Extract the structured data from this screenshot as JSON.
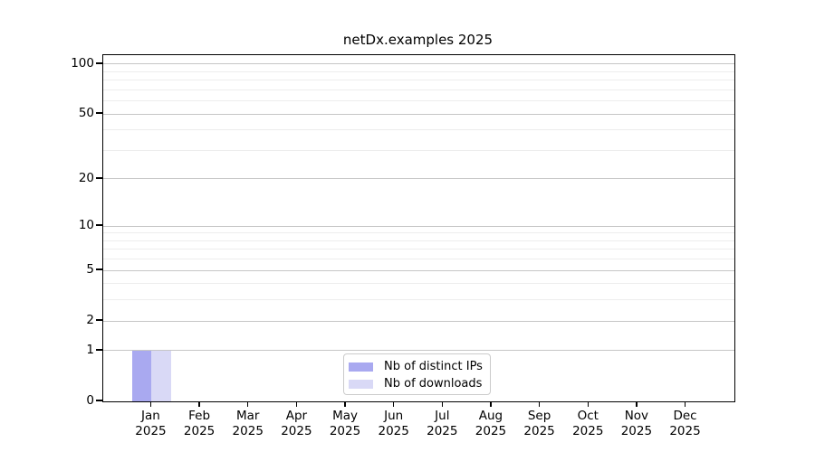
{
  "chart_data": {
    "type": "bar",
    "title": "netDx.examples 2025",
    "year_label": "2025",
    "categories": [
      "Jan",
      "Feb",
      "Mar",
      "Apr",
      "May",
      "Jun",
      "Jul",
      "Aug",
      "Sep",
      "Oct",
      "Nov",
      "Dec"
    ],
    "series": [
      {
        "name": "Nb of distinct IPs",
        "color": "#a9a9f0",
        "values": [
          1,
          0,
          0,
          0,
          0,
          0,
          0,
          0,
          0,
          0,
          0,
          0
        ]
      },
      {
        "name": "Nb of downloads",
        "color": "#d9d9f6",
        "values": [
          1,
          0,
          0,
          0,
          0,
          0,
          0,
          0,
          0,
          0,
          0,
          0
        ]
      }
    ],
    "y_scale": "log1p",
    "ylim": [
      0,
      113
    ],
    "y_major_ticks": [
      0,
      1,
      2,
      5,
      10,
      20,
      50,
      100
    ],
    "y_minor_ticks": [
      3,
      4,
      6,
      7,
      8,
      9,
      30,
      40,
      60,
      70,
      80,
      90
    ],
    "grid": true,
    "legend_position": "lower center",
    "axis_color": "#000000",
    "grid_major_color": "#c6c6c6",
    "grid_minor_color": "#ededed"
  }
}
